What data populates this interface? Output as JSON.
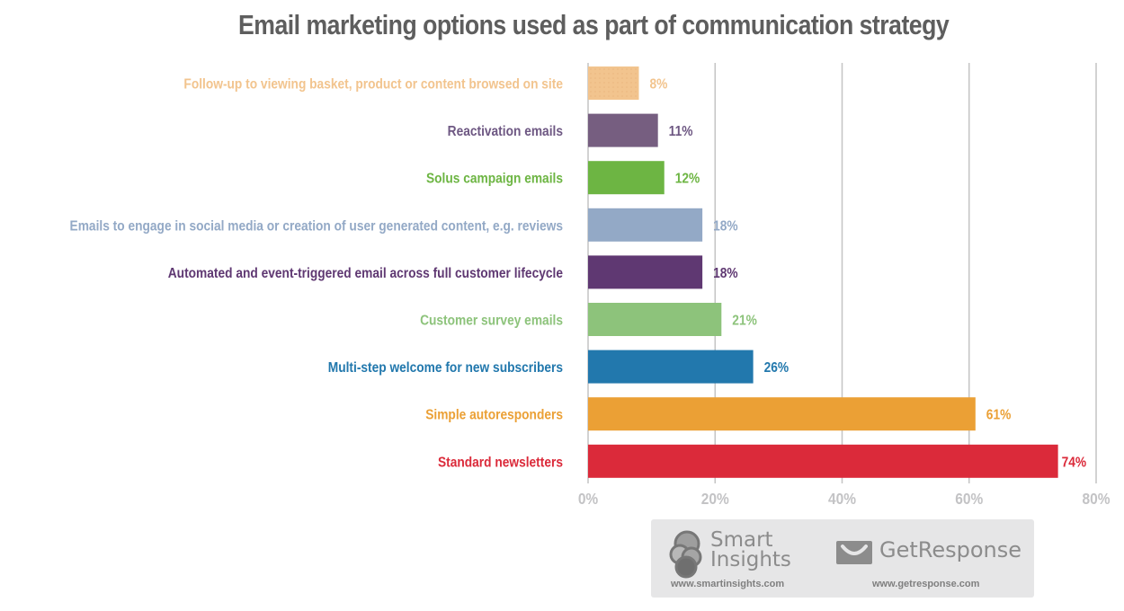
{
  "chart_data": {
    "type": "bar",
    "orientation": "horizontal",
    "title": "Email marketing options used as part of communication strategy",
    "xlabel": "",
    "ylabel": "",
    "xlim": [
      0,
      80
    ],
    "x_ticks": [
      "0%",
      "20%",
      "40%",
      "60%",
      "80%"
    ],
    "x_tick_values": [
      0,
      20,
      40,
      60,
      80
    ],
    "grid": true,
    "categories": [
      "Follow-up to viewing basket, product or content browsed on site",
      "Reactivation emails",
      "Solus campaign emails",
      "Emails to engage in social media or creation of user generated content, e.g. reviews",
      "Automated and event-triggered email across full customer lifecycle",
      "Customer survey emails",
      "Multi-step welcome for new subscribers",
      "Simple autoresponders",
      "Standard newsletters"
    ],
    "values": [
      8,
      11,
      12,
      18,
      18,
      21,
      26,
      61,
      74
    ],
    "value_labels": [
      "8%",
      "11%",
      "12%",
      "18%",
      "18%",
      "21%",
      "26%",
      "61%",
      "74%"
    ],
    "colors": [
      "#f2c48e",
      "#765e80",
      "#6db543",
      "#93a9c6",
      "#5f3872",
      "#8dc37b",
      "#2278ad",
      "#eba035",
      "#db2a3a"
    ],
    "label_colors": [
      "#f2c48e",
      "#6e5883",
      "#6db543",
      "#93a9c6",
      "#5f3872",
      "#8dc37b",
      "#2278ad",
      "#eba035",
      "#db2a3a"
    ]
  },
  "footer": {
    "smartinsights_name_line1": "Smart",
    "smartinsights_name_line2": "Insights",
    "smartinsights_url": "www.smartinsights.com",
    "getresponse_name": "GetResponse",
    "getresponse_url": "www.getresponse.com"
  }
}
